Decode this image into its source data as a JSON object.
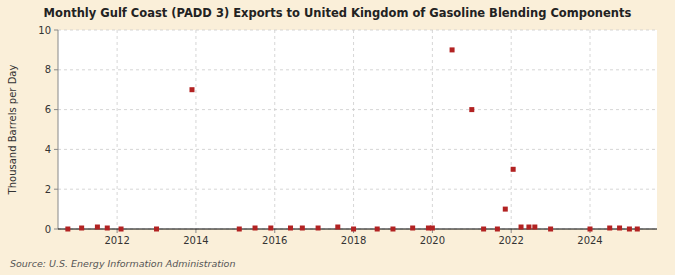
{
  "chart_data": {
    "type": "scatter",
    "title": "Monthly Gulf Coast (PADD 3) Exports to United Kingdom of Gasoline Blending Components",
    "y_label": "Thousand Barrels per Day",
    "source": "Source: U.S. Energy Information Administration",
    "x": [
      2010.75,
      2011.1,
      2011.5,
      2011.75,
      2012.1,
      2013.0,
      2013.9,
      2015.1,
      2015.5,
      2015.9,
      2016.4,
      2016.7,
      2017.1,
      2017.6,
      2018.0,
      2018.6,
      2019.0,
      2019.5,
      2019.9,
      2020.0,
      2020.5,
      2021.0,
      2021.3,
      2021.65,
      2021.85,
      2022.05,
      2022.25,
      2022.45,
      2022.6,
      2023.0,
      2024.0,
      2024.5,
      2024.75,
      2025.0,
      2025.2
    ],
    "values": [
      0.0,
      0.05,
      0.1,
      0.05,
      0.0,
      0.0,
      7.0,
      0.0,
      0.05,
      0.05,
      0.05,
      0.05,
      0.05,
      0.1,
      0.0,
      0.0,
      0.0,
      0.05,
      0.05,
      0.05,
      9.0,
      6.0,
      0.0,
      0.0,
      1.0,
      3.0,
      0.1,
      0.1,
      0.1,
      0.0,
      0.0,
      0.05,
      0.05,
      0.0,
      0.0
    ],
    "color": "#b22222",
    "marker": "square",
    "xlim": [
      2010.5,
      2025.7
    ],
    "xticks": [
      2012,
      2014,
      2016,
      2018,
      2020,
      2022,
      2024
    ],
    "ylim": [
      0,
      10
    ],
    "yticks": [
      0,
      2,
      4,
      6,
      8,
      10
    ],
    "grid": true
  }
}
